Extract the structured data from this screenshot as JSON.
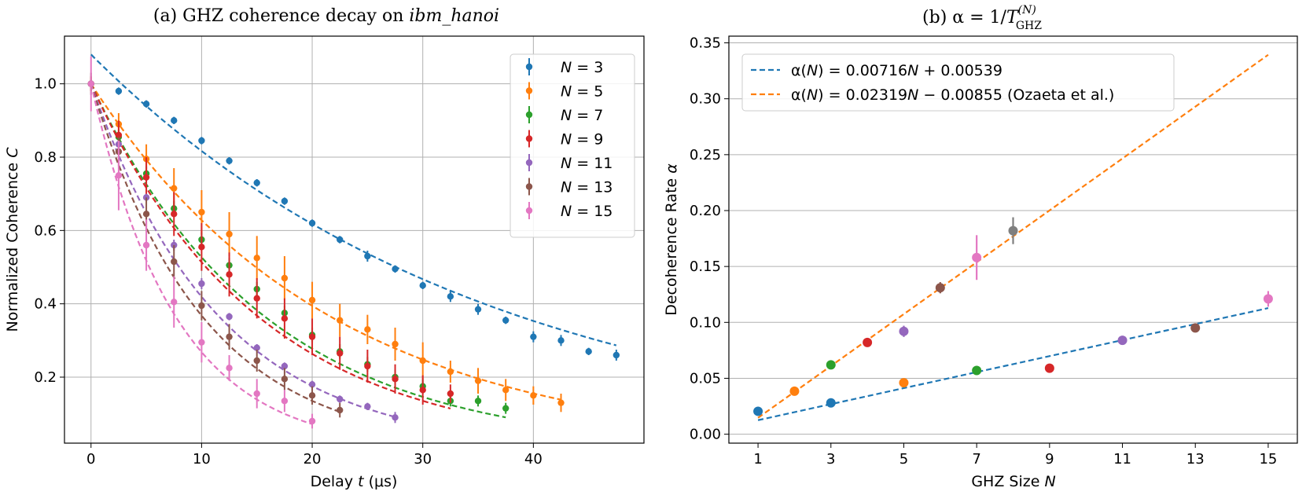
{
  "panel_a": {
    "title": "(a) GHZ coherence decay on ",
    "title_italic": "ibm_hanoi",
    "xlabel_pre": "Delay ",
    "xlabel_var": "t",
    "xlabel_post": " (μs)",
    "ylabel_pre": "Normalized Coherence ",
    "ylabel_var": "C"
  },
  "panel_b": {
    "title_pre": "(b) α = 1/",
    "title_T": "T",
    "title_sup": "(N)",
    "title_sub": "GHZ",
    "xlabel_pre": "GHZ Size ",
    "xlabel_var": "N",
    "ylabel_pre": "Decoherence Rate ",
    "ylabel_var": "α"
  },
  "chart_data": [
    {
      "type": "scatter",
      "panel": "a",
      "title": "(a) GHZ coherence decay on ibm_hanoi",
      "xlabel": "Delay t (μs)",
      "ylabel": "Normalized Coherence C",
      "xlim": [
        -2.4,
        50
      ],
      "ylim": [
        0.02,
        1.13
      ],
      "xticks": [
        0,
        10,
        20,
        30,
        40
      ],
      "yticks": [
        0.2,
        0.4,
        0.6,
        0.8,
        1.0
      ],
      "grid": true,
      "legend_position": "top-right",
      "fit_lines": "dashed exponential decay per series",
      "series": [
        {
          "name": "N = 3",
          "N": "3",
          "color": "#1f77b4",
          "x": [
            0,
            2.5,
            5,
            7.5,
            10,
            12.5,
            15,
            17.5,
            20,
            22.5,
            25,
            27.5,
            30,
            32.5,
            35,
            37.5,
            40,
            42.5,
            45,
            47.5
          ],
          "y": [
            1.0,
            0.98,
            0.945,
            0.9,
            0.845,
            0.79,
            0.73,
            0.68,
            0.62,
            0.575,
            0.53,
            0.495,
            0.45,
            0.42,
            0.385,
            0.355,
            0.31,
            0.3,
            0.27,
            0.26
          ],
          "err": [
            0.01,
            0.01,
            0.01,
            0.01,
            0.01,
            0.01,
            0.01,
            0.01,
            0.01,
            0.01,
            0.015,
            0.01,
            0.01,
            0.015,
            0.015,
            0.01,
            0.015,
            0.015,
            0.01,
            0.015
          ],
          "fit": {
            "A": 1.08,
            "tau": 35.8,
            "xmax": 47.5
          }
        },
        {
          "name": "N = 5",
          "N": "5",
          "color": "#ff7f0e",
          "x": [
            0,
            2.5,
            5,
            7.5,
            10,
            12.5,
            15,
            17.5,
            20,
            22.5,
            25,
            27.5,
            30,
            32.5,
            35,
            37.5,
            40,
            42.5
          ],
          "y": [
            1.0,
            0.89,
            0.795,
            0.715,
            0.65,
            0.59,
            0.525,
            0.47,
            0.41,
            0.355,
            0.33,
            0.29,
            0.245,
            0.215,
            0.19,
            0.165,
            0.15,
            0.13
          ],
          "err": [
            0.02,
            0.03,
            0.04,
            0.055,
            0.06,
            0.06,
            0.06,
            0.06,
            0.05,
            0.045,
            0.04,
            0.045,
            0.05,
            0.03,
            0.035,
            0.03,
            0.025,
            0.025
          ],
          "fit": {
            "A": 1.0,
            "tau": 21.5,
            "xmax": 42.5
          }
        },
        {
          "name": "N = 7",
          "N": "7",
          "color": "#2ca02c",
          "x": [
            0,
            2.5,
            5,
            7.5,
            10,
            12.5,
            15,
            17.5,
            20,
            22.5,
            25,
            27.5,
            30,
            32.5,
            35,
            37.5
          ],
          "y": [
            1.0,
            0.855,
            0.755,
            0.66,
            0.575,
            0.505,
            0.44,
            0.375,
            0.315,
            0.27,
            0.235,
            0.2,
            0.175,
            0.135,
            0.135,
            0.115
          ],
          "err": [
            0.01,
            0.02,
            0.02,
            0.02,
            0.02,
            0.02,
            0.02,
            0.02,
            0.02,
            0.02,
            0.02,
            0.02,
            0.02,
            0.015,
            0.015,
            0.015
          ],
          "fit": {
            "A": 1.0,
            "tau": 15.6,
            "xmax": 37.5
          }
        },
        {
          "name": "N = 9",
          "N": "9",
          "color": "#d62728",
          "x": [
            0,
            2.5,
            5,
            7.5,
            10,
            12.5,
            15,
            17.5,
            20,
            22.5,
            25,
            27.5,
            30,
            32.5
          ],
          "y": [
            1.0,
            0.86,
            0.745,
            0.645,
            0.555,
            0.48,
            0.415,
            0.36,
            0.31,
            0.265,
            0.23,
            0.195,
            0.165,
            0.155
          ],
          "err": [
            0.02,
            0.04,
            0.055,
            0.06,
            0.065,
            0.06,
            0.055,
            0.055,
            0.05,
            0.045,
            0.045,
            0.04,
            0.04,
            0.025
          ],
          "fit": {
            "A": 1.0,
            "tau": 15.0,
            "xmax": 32.5
          }
        },
        {
          "name": "N = 11",
          "N": "11",
          "color": "#9467bd",
          "x": [
            0,
            2.5,
            5,
            7.5,
            10,
            12.5,
            15,
            17.5,
            20,
            22.5,
            25,
            27.5
          ],
          "y": [
            1.0,
            0.835,
            0.69,
            0.56,
            0.455,
            0.365,
            0.28,
            0.23,
            0.18,
            0.14,
            0.12,
            0.09
          ],
          "err": [
            0.01,
            0.01,
            0.01,
            0.015,
            0.015,
            0.01,
            0.01,
            0.01,
            0.01,
            0.01,
            0.01,
            0.015
          ],
          "fit": {
            "A": 1.0,
            "tau": 11.5,
            "xmax": 27.5
          }
        },
        {
          "name": "N = 13",
          "N": "13",
          "color": "#8c564b",
          "x": [
            0,
            2.5,
            5,
            7.5,
            10,
            12.5,
            15,
            17.5,
            20,
            22.5
          ],
          "y": [
            1.0,
            0.815,
            0.645,
            0.515,
            0.395,
            0.31,
            0.245,
            0.195,
            0.15,
            0.11
          ],
          "err": [
            0.03,
            0.04,
            0.045,
            0.045,
            0.04,
            0.035,
            0.03,
            0.03,
            0.025,
            0.02
          ],
          "fit": {
            "A": 1.0,
            "tau": 10.0,
            "xmax": 22.5
          }
        },
        {
          "name": "N = 15",
          "N": "15",
          "color": "#e377c2",
          "x": [
            0,
            2.5,
            5,
            7.5,
            10,
            12.5,
            15,
            17.5,
            20
          ],
          "y": [
            1.0,
            0.75,
            0.56,
            0.405,
            0.295,
            0.225,
            0.155,
            0.135,
            0.08
          ],
          "err": [
            0.075,
            0.095,
            0.07,
            0.07,
            0.055,
            0.035,
            0.04,
            0.03,
            0.02
          ],
          "fit": {
            "A": 1.0,
            "tau": 7.6,
            "xmax": 20
          }
        }
      ]
    },
    {
      "type": "scatter",
      "panel": "b",
      "title": "(b) α = 1/T_GHZ^(N)",
      "xlabel": "GHZ Size N",
      "ylabel": "Decoherence Rate α",
      "xlim": [
        0.2,
        15.8
      ],
      "ylim": [
        -0.008,
        0.356
      ],
      "xticks": [
        1,
        3,
        5,
        7,
        9,
        11,
        13,
        15
      ],
      "yticks": [
        0.0,
        0.05,
        0.1,
        0.15,
        0.2,
        0.25,
        0.3,
        0.35
      ],
      "ytick_labels": [
        "0.00",
        "0.05",
        "0.10",
        "0.15",
        "0.20",
        "0.25",
        "0.30",
        "0.35"
      ],
      "grid": "horizontal",
      "legend_position": "top-left",
      "fits": [
        {
          "label_pre": "α(",
          "label_var": "N",
          "label_mid": ") = 0.00716",
          "label_var2": "N",
          "label_post": " + 0.00539",
          "slope": 0.00716,
          "intercept": 0.00539,
          "x_range": [
            1,
            15
          ],
          "color": "#1f77b4"
        },
        {
          "label_pre": "α(",
          "label_var": "N",
          "label_mid": ") = 0.02319",
          "label_var2": "N",
          "label_post": " − 0.00855 (Ozaeta et al.)",
          "slope": 0.02319,
          "intercept": -0.00855,
          "x_range": [
            1,
            15
          ],
          "color": "#ff7f0e"
        }
      ],
      "points": [
        {
          "x": 1,
          "y": 0.0205,
          "err": 0.002,
          "color": "#1f77b4"
        },
        {
          "x": 3,
          "y": 0.028,
          "err": 0.002,
          "color": "#1f77b4"
        },
        {
          "x": 5,
          "y": 0.046,
          "err": 0.002,
          "color": "#ff7f0e"
        },
        {
          "x": 7,
          "y": 0.057,
          "err": 0.002,
          "color": "#2ca02c"
        },
        {
          "x": 9,
          "y": 0.059,
          "err": 0.002,
          "color": "#d62728"
        },
        {
          "x": 11,
          "y": 0.084,
          "err": 0.002,
          "color": "#9467bd"
        },
        {
          "x": 13,
          "y": 0.095,
          "err": 0.003,
          "color": "#8c564b"
        },
        {
          "x": 15,
          "y": 0.121,
          "err": 0.007,
          "color": "#e377c2"
        },
        {
          "x": 2,
          "y": 0.0385,
          "err": 0.002,
          "color": "#ff7f0e"
        },
        {
          "x": 3,
          "y": 0.062,
          "err": 0.002,
          "color": "#2ca02c"
        },
        {
          "x": 4,
          "y": 0.082,
          "err": 0.002,
          "color": "#d62728"
        },
        {
          "x": 5,
          "y": 0.092,
          "err": 0.005,
          "color": "#9467bd"
        },
        {
          "x": 6,
          "y": 0.131,
          "err": 0.005,
          "color": "#8c564b"
        },
        {
          "x": 7,
          "y": 0.158,
          "err": 0.02,
          "color": "#e377c2"
        },
        {
          "x": 8,
          "y": 0.182,
          "err": 0.012,
          "color": "#7f7f7f"
        }
      ]
    }
  ]
}
